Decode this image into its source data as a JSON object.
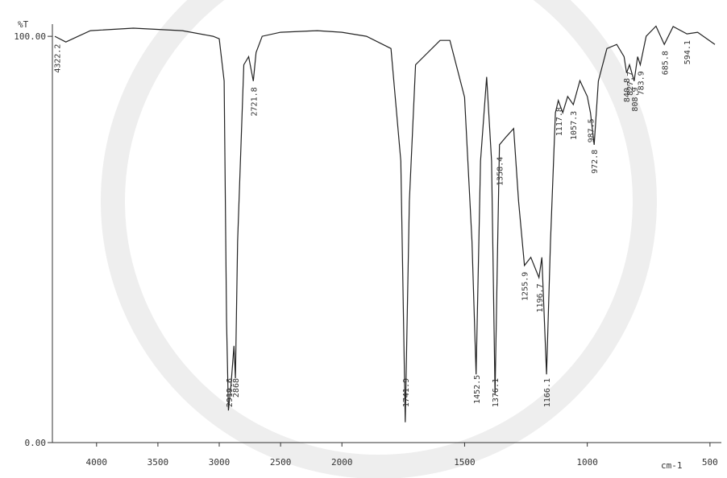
{
  "chart_data": {
    "type": "line",
    "y_label": "%T",
    "x_label": "cm-1",
    "xlim": [
      4360,
      470
    ],
    "x_scale_break": 2000,
    "xticks": [
      4000,
      3500,
      3000,
      2500,
      2000,
      1500,
      1000,
      500
    ],
    "ylim": [
      0,
      103
    ],
    "yticks": [
      {
        "value": 100,
        "label": "100.00"
      },
      {
        "value": 0,
        "label": "0.00"
      }
    ],
    "color": "#222",
    "x": [
      4340,
      4250,
      4150,
      4050,
      3700,
      3300,
      3050,
      3000,
      2960,
      2940,
      2925,
      2905,
      2880,
      2868,
      2850,
      2800,
      2760,
      2722,
      2700,
      2650,
      2500,
      2200,
      2000,
      1900,
      1800,
      1760,
      1742,
      1725,
      1700,
      1600,
      1560,
      1500,
      1470,
      1453,
      1435,
      1410,
      1390,
      1376,
      1365,
      1358,
      1330,
      1300,
      1280,
      1256,
      1230,
      1197,
      1185,
      1166,
      1150,
      1130,
      1118,
      1100,
      1080,
      1057,
      1030,
      1000,
      987,
      972,
      955,
      920,
      880,
      850,
      840,
      828,
      809,
      795,
      784,
      760,
      720,
      686,
      650,
      594,
      550,
      480
    ],
    "values": [
      100,
      98.6,
      100,
      101.4,
      102,
      101.4,
      100,
      99.4,
      89,
      29.7,
      7.9,
      13.9,
      23.8,
      15.8,
      49.5,
      93,
      95,
      89,
      96,
      100,
      101,
      101.4,
      101,
      100,
      97,
      69.3,
      5,
      59.4,
      93,
      99,
      99,
      85,
      49.5,
      16.8,
      69.3,
      90,
      69.3,
      11.9,
      49.5,
      73.3,
      75.3,
      77.3,
      59.4,
      43.6,
      45.6,
      40.6,
      45.6,
      16.8,
      49.5,
      81.2,
      84.2,
      81.2,
      85.2,
      83.2,
      89.1,
      85.2,
      81.2,
      73.3,
      89,
      97,
      98,
      95,
      91,
      93,
      89,
      95,
      93,
      100,
      102.5,
      98,
      102.4,
      100.6,
      101,
      98
    ],
    "peak_labels": [
      4322.2,
      2919.6,
      2868.0,
      2721.8,
      1741.9,
      1452.5,
      1376.1,
      1358.4,
      1255.9,
      1196.7,
      1166.1,
      1117.8,
      1057.3,
      987.5,
      972.8,
      840.8,
      827.7,
      808.9,
      783.9,
      685.8,
      594.1
    ]
  }
}
